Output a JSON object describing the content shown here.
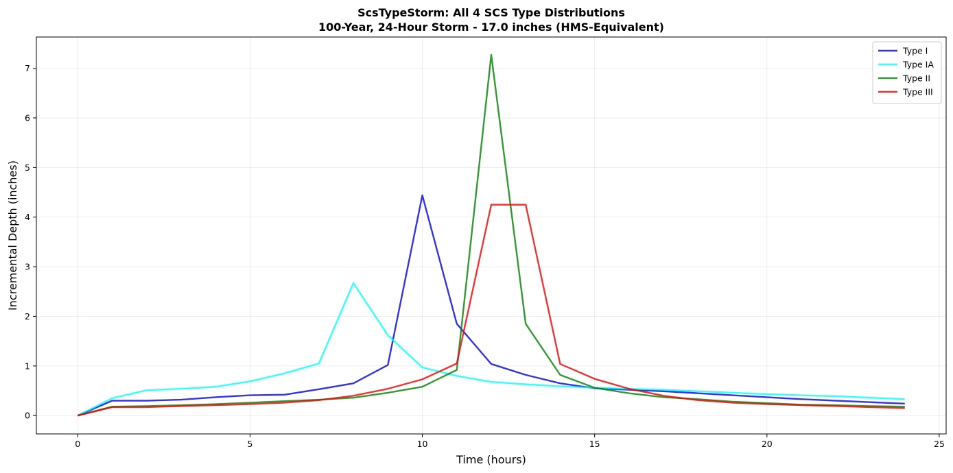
{
  "chart_data": {
    "type": "line",
    "title": "ScsTypeStorm: All 4 SCS Type Distributions",
    "subtitle": "100-Year, 24-Hour Storm - 17.0 inches (HMS-Equivalent)",
    "xlabel": "Time (hours)",
    "ylabel": "Incremental Depth (inches)",
    "xlim": [
      -1.2,
      25.2
    ],
    "ylim": [
      -0.37,
      7.63
    ],
    "xticks": [
      0,
      5,
      10,
      15,
      20,
      25
    ],
    "yticks": [
      0,
      1,
      2,
      3,
      4,
      5,
      6,
      7
    ],
    "grid": true,
    "legend_position": "top-right",
    "x": [
      0,
      1,
      2,
      3,
      4,
      5,
      6,
      7,
      8,
      9,
      10,
      11,
      12,
      13,
      14,
      15,
      16,
      17,
      18,
      19,
      20,
      21,
      22,
      23,
      24
    ],
    "series": [
      {
        "name": "Type I",
        "color": "#0000dd",
        "values": [
          0,
          0.3,
          0.3,
          0.32,
          0.37,
          0.41,
          0.42,
          0.53,
          0.65,
          1.02,
          4.44,
          1.85,
          1.04,
          0.82,
          0.65,
          0.55,
          0.52,
          0.49,
          0.45,
          0.41,
          0.37,
          0.33,
          0.3,
          0.27,
          0.24
        ]
      },
      {
        "name": "Type IA",
        "color": "#00ffff",
        "values": [
          0,
          0.35,
          0.51,
          0.54,
          0.58,
          0.69,
          0.85,
          1.05,
          2.67,
          1.62,
          0.97,
          0.8,
          0.68,
          0.63,
          0.59,
          0.56,
          0.54,
          0.52,
          0.49,
          0.46,
          0.43,
          0.41,
          0.39,
          0.36,
          0.33
        ]
      },
      {
        "name": "Type II",
        "color": "#007f00",
        "values": [
          0,
          0.18,
          0.19,
          0.21,
          0.23,
          0.26,
          0.29,
          0.32,
          0.36,
          0.46,
          0.58,
          0.92,
          7.27,
          1.85,
          0.82,
          0.56,
          0.45,
          0.37,
          0.33,
          0.28,
          0.25,
          0.22,
          0.21,
          0.19,
          0.18
        ]
      },
      {
        "name": "Type III",
        "color": "#ee0000",
        "values": [
          0,
          0.17,
          0.17,
          0.19,
          0.21,
          0.23,
          0.26,
          0.31,
          0.4,
          0.54,
          0.73,
          1.05,
          4.25,
          4.25,
          1.04,
          0.74,
          0.54,
          0.4,
          0.31,
          0.26,
          0.23,
          0.21,
          0.19,
          0.17,
          0.15
        ]
      }
    ]
  }
}
